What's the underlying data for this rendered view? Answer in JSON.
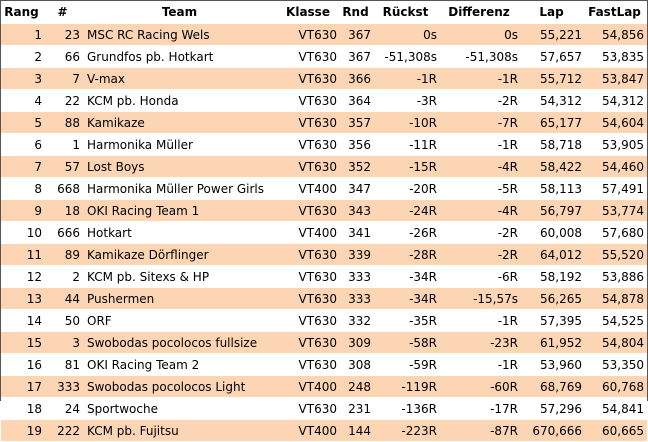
{
  "columns": [
    "Rang",
    "#",
    "Team",
    "Klasse",
    "Rnd",
    "Rückst",
    "Differenz",
    "Lap",
    "FastLap"
  ],
  "rows": [
    {
      "rang": "1",
      "nr": "23",
      "team": "MSC RC Racing Wels",
      "klasse": "VT630",
      "rnd": "367",
      "rueckst": "0s",
      "differenz": "0s",
      "lap": "55,221",
      "fastlap": "54,856"
    },
    {
      "rang": "2",
      "nr": "66",
      "team": "Grundfos pb. Hotkart",
      "klasse": "VT630",
      "rnd": "367",
      "rueckst": "-51,308s",
      "differenz": "-51,308s",
      "lap": "57,657",
      "fastlap": "53,835"
    },
    {
      "rang": "3",
      "nr": "7",
      "team": "V-max",
      "klasse": "VT630",
      "rnd": "366",
      "rueckst": "-1R",
      "differenz": "-1R",
      "lap": "55,712",
      "fastlap": "53,847"
    },
    {
      "rang": "4",
      "nr": "22",
      "team": "KCM pb. Honda",
      "klasse": "VT630",
      "rnd": "364",
      "rueckst": "-3R",
      "differenz": "-2R",
      "lap": "54,312",
      "fastlap": "54,312"
    },
    {
      "rang": "5",
      "nr": "88",
      "team": "Kamikaze",
      "klasse": "VT630",
      "rnd": "357",
      "rueckst": "-10R",
      "differenz": "-7R",
      "lap": "65,177",
      "fastlap": "54,604"
    },
    {
      "rang": "6",
      "nr": "1",
      "team": "Harmonika Müller",
      "klasse": "VT630",
      "rnd": "356",
      "rueckst": "-11R",
      "differenz": "-1R",
      "lap": "58,718",
      "fastlap": "53,905"
    },
    {
      "rang": "7",
      "nr": "57",
      "team": "Lost Boys",
      "klasse": "VT630",
      "rnd": "352",
      "rueckst": "-15R",
      "differenz": "-4R",
      "lap": "58,422",
      "fastlap": "54,460"
    },
    {
      "rang": "8",
      "nr": "668",
      "team": "Harmonika Müller Power Girls",
      "klasse": "VT400",
      "rnd": "347",
      "rueckst": "-20R",
      "differenz": "-5R",
      "lap": "58,113",
      "fastlap": "57,491"
    },
    {
      "rang": "9",
      "nr": "18",
      "team": "OKI Racing Team 1",
      "klasse": "VT630",
      "rnd": "343",
      "rueckst": "-24R",
      "differenz": "-4R",
      "lap": "56,797",
      "fastlap": "53,774"
    },
    {
      "rang": "10",
      "nr": "666",
      "team": "Hotkart",
      "klasse": "VT400",
      "rnd": "341",
      "rueckst": "-26R",
      "differenz": "-2R",
      "lap": "60,008",
      "fastlap": "57,680"
    },
    {
      "rang": "11",
      "nr": "89",
      "team": "Kamikaze Dörflinger",
      "klasse": "VT630",
      "rnd": "339",
      "rueckst": "-28R",
      "differenz": "-2R",
      "lap": "64,012",
      "fastlap": "55,520"
    },
    {
      "rang": "12",
      "nr": "2",
      "team": "KCM pb. Sitexs & HP",
      "klasse": "VT630",
      "rnd": "333",
      "rueckst": "-34R",
      "differenz": "-6R",
      "lap": "58,192",
      "fastlap": "53,886"
    },
    {
      "rang": "13",
      "nr": "44",
      "team": "Pushermen",
      "klasse": "VT630",
      "rnd": "333",
      "rueckst": "-34R",
      "differenz": "-15,57s",
      "lap": "56,265",
      "fastlap": "54,878"
    },
    {
      "rang": "14",
      "nr": "50",
      "team": "ORF",
      "klasse": "VT630",
      "rnd": "332",
      "rueckst": "-35R",
      "differenz": "-1R",
      "lap": "57,395",
      "fastlap": "54,525"
    },
    {
      "rang": "15",
      "nr": "3",
      "team": "Swobodas pocolocos fullsize",
      "klasse": "VT630",
      "rnd": "309",
      "rueckst": "-58R",
      "differenz": "-23R",
      "lap": "61,952",
      "fastlap": "54,804"
    },
    {
      "rang": "16",
      "nr": "81",
      "team": "OKI Racing Team 2",
      "klasse": "VT630",
      "rnd": "308",
      "rueckst": "-59R",
      "differenz": "-1R",
      "lap": "53,960",
      "fastlap": "53,350"
    },
    {
      "rang": "17",
      "nr": "333",
      "team": "Swobodas pocolocos Light",
      "klasse": "VT400",
      "rnd": "248",
      "rueckst": "-119R",
      "differenz": "-60R",
      "lap": "68,769",
      "fastlap": "60,768"
    },
    {
      "rang": "18",
      "nr": "24",
      "team": "Sportwoche",
      "klasse": "VT630",
      "rnd": "231",
      "rueckst": "-136R",
      "differenz": "-17R",
      "lap": "57,296",
      "fastlap": "54,841"
    },
    {
      "rang": "19",
      "nr": "222",
      "team": "KCM pb. Fujitsu",
      "klasse": "VT400",
      "rnd": "144",
      "rueckst": "-223R",
      "differenz": "-87R",
      "lap": "670,666",
      "fastlap": "60,665"
    }
  ],
  "colors": {
    "row_odd": "#fcd5b4",
    "row_even": "#ffffff",
    "border": "#555555"
  }
}
